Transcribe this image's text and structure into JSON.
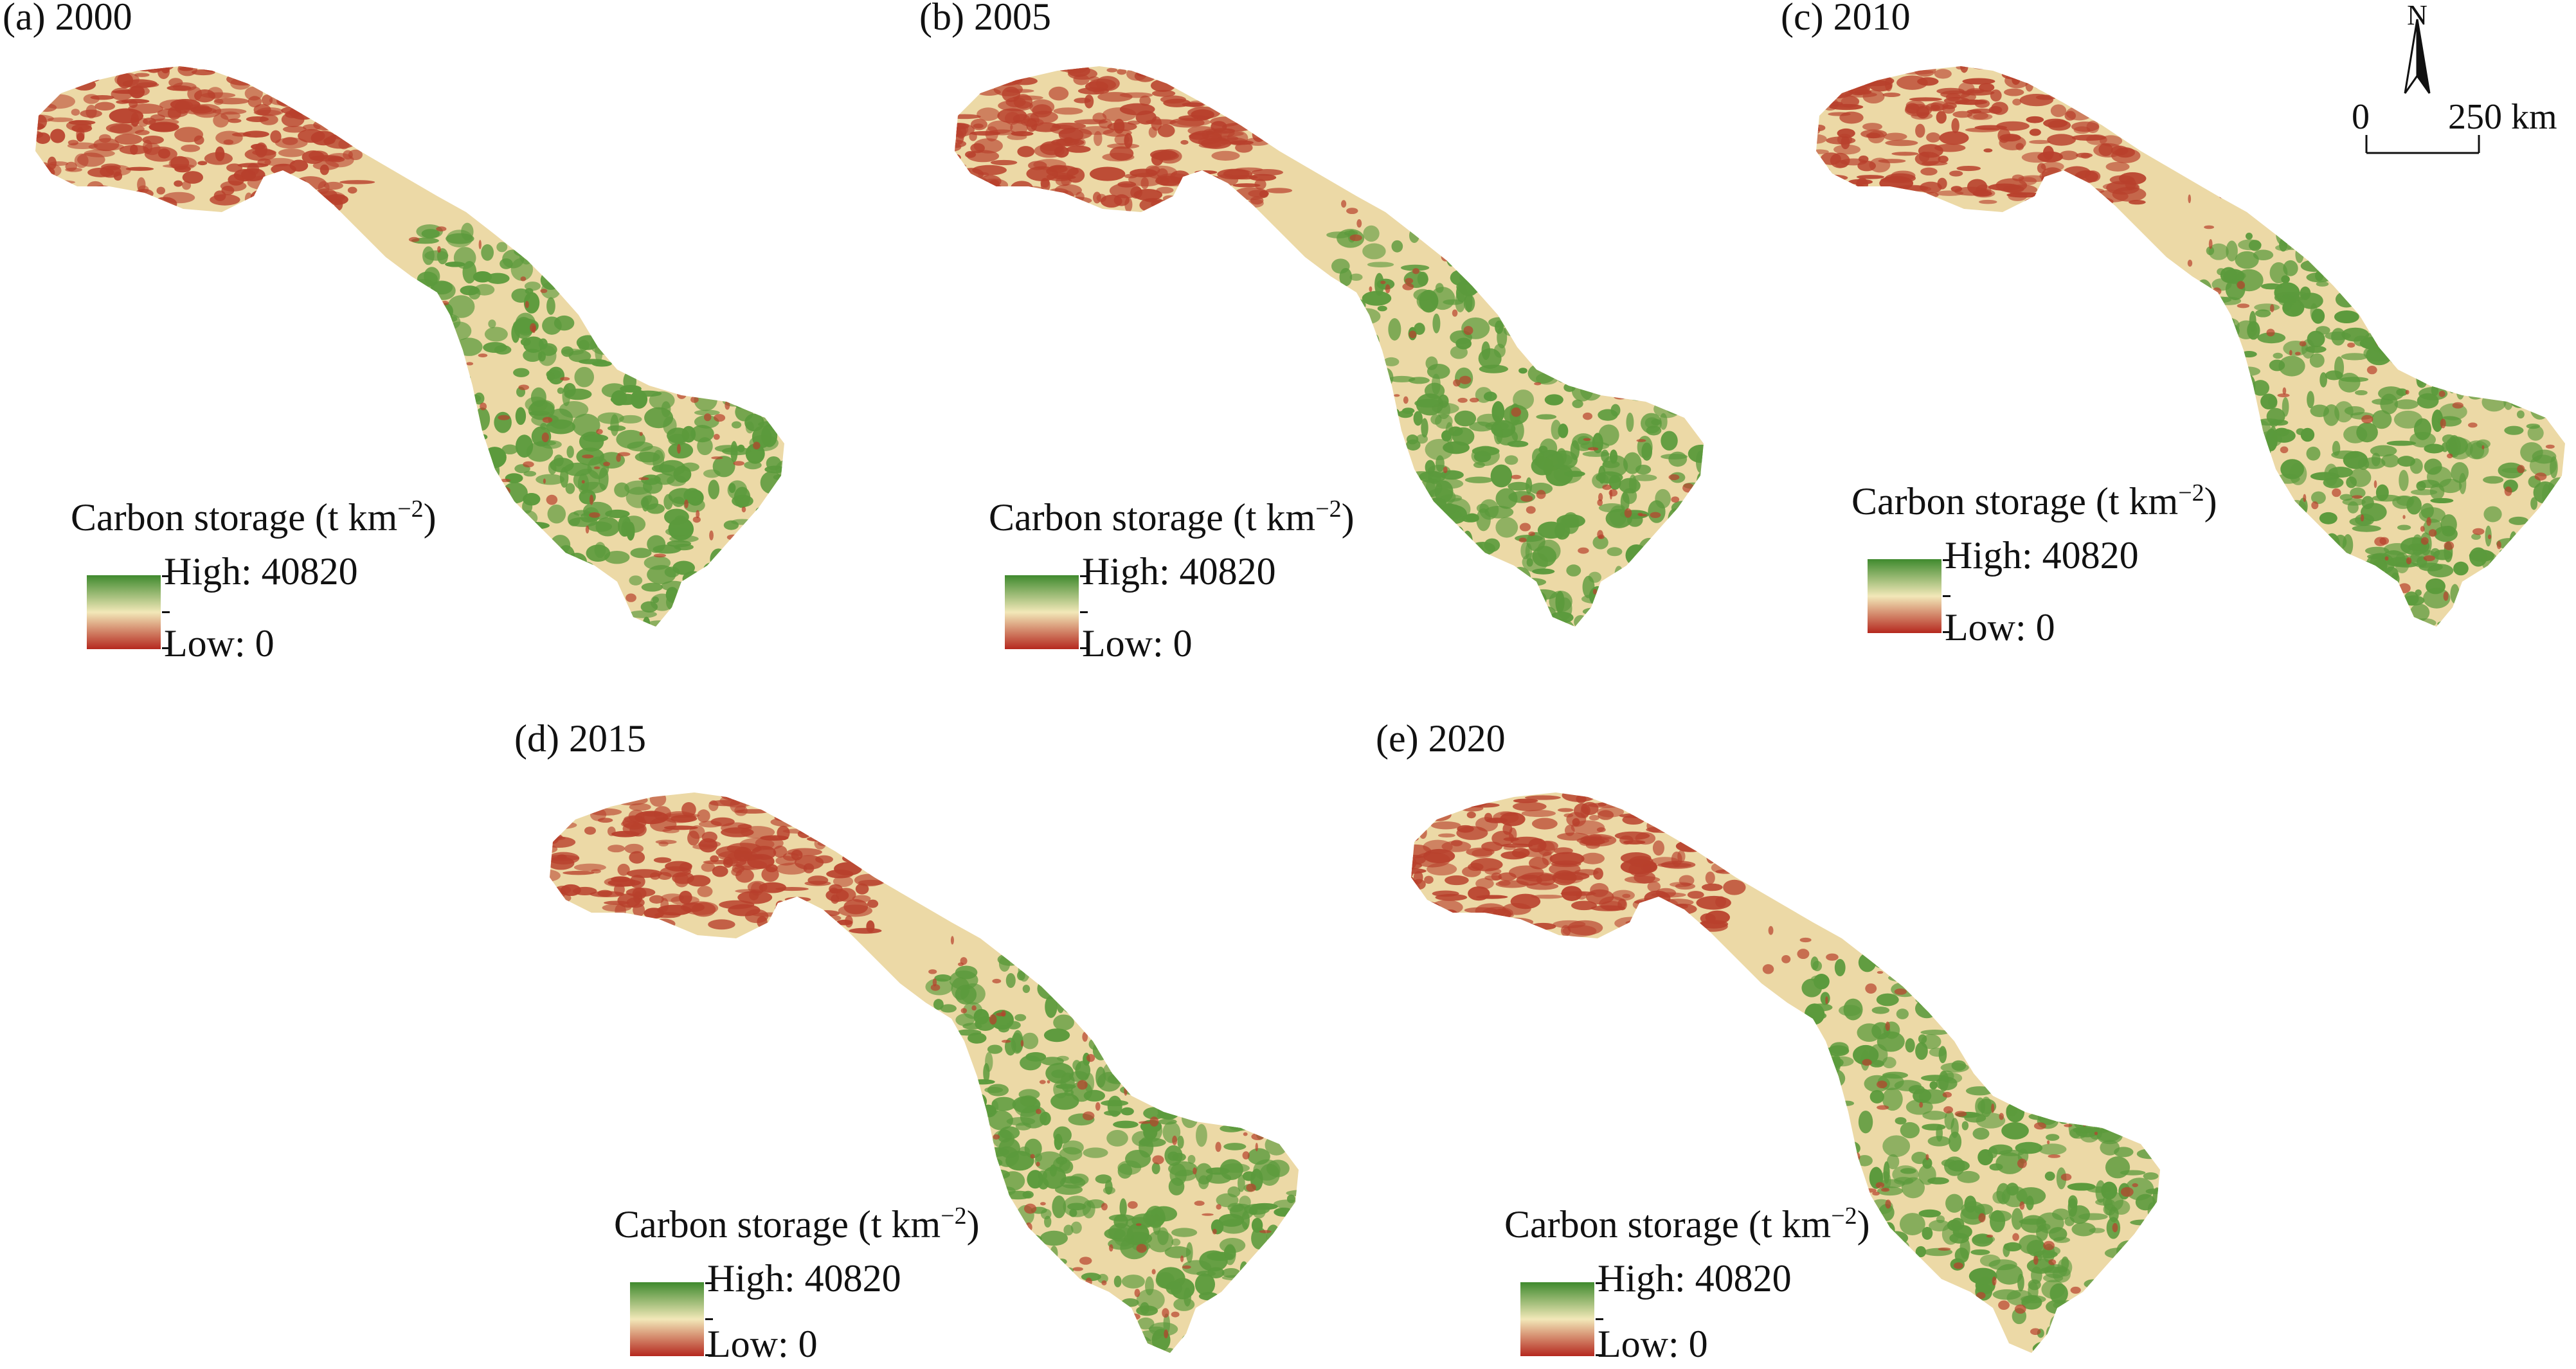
{
  "panels": [
    {
      "title": "(a) 2000"
    },
    {
      "title": "(b) 2005"
    },
    {
      "title": "(c) 2010"
    },
    {
      "title": "(d) 2015"
    },
    {
      "title": "(e) 2020"
    }
  ],
  "legend": {
    "title": "Carbon storage (t km",
    "title_superscript": "−2",
    "title_close": ")",
    "high_label": "High: 40820",
    "low_label": "Low: 0",
    "high_value": 40820,
    "low_value": 0,
    "colors": {
      "high": "#3f8a2e",
      "mid": "#f2e8b8",
      "low": "#b5281e"
    }
  },
  "north_arrow": {
    "label": "N"
  },
  "scale_bar": {
    "start_label": "0",
    "end_label": "250 km"
  },
  "map_colors": {
    "land": "#ecd9a6",
    "forest": "#5b9a3c",
    "low_storage": "#b8402c"
  }
}
